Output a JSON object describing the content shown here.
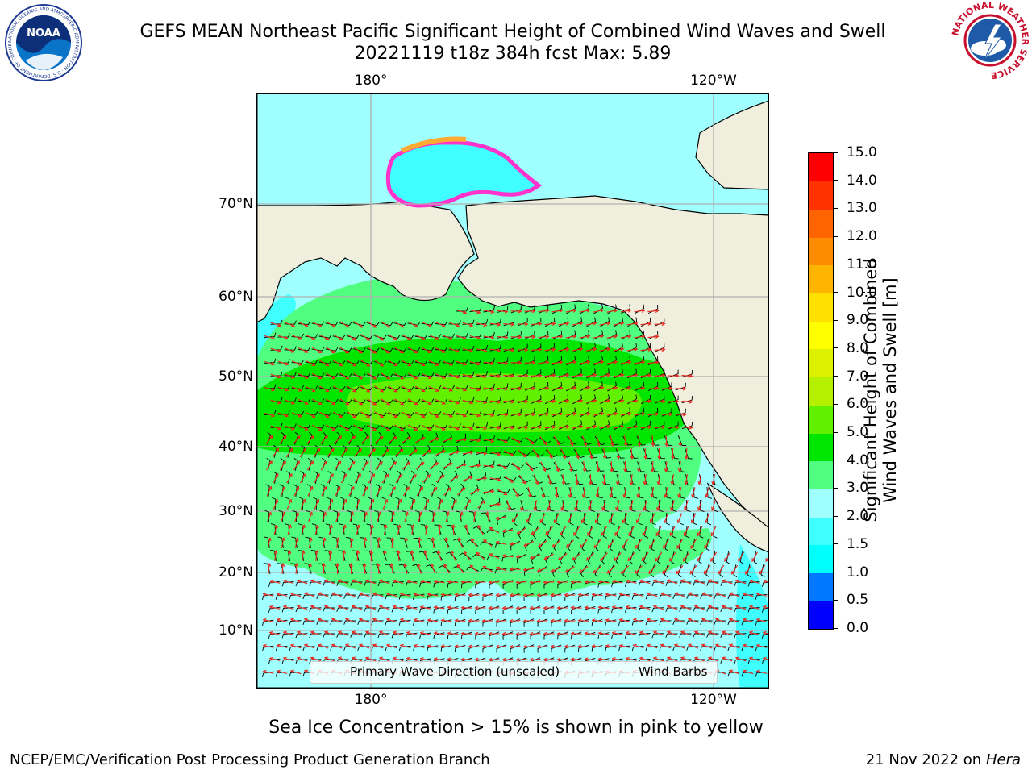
{
  "header": {
    "title_line1": "GEFS MEAN Northeast Pacific Significant Height of Combined Wind Waves and Swell",
    "title_line2": "20221119 t18z 384h fcst   Max: 5.89"
  },
  "logos": {
    "noaa_text": "NOAA",
    "noaa_ring_text": "NATIONAL OCEANIC AND ATMOSPHERIC ADMINISTRATION · U.S. DEPARTMENT OF COMMERCE",
    "nws_ring_text": "NATIONAL WEATHER SERVICE"
  },
  "map": {
    "lon_labels_top": [
      "180°",
      "120°W"
    ],
    "lon_labels_bottom": [
      "180°",
      "120°W"
    ],
    "lat_labels": [
      "70°N",
      "60°N",
      "50°N",
      "40°N",
      "30°N",
      "20°N",
      "10°N"
    ],
    "colors": {
      "land": "#f0eedc",
      "land_edge": "#000000",
      "grid": "#b0b0b0",
      "wave_direction": "#e8281e",
      "wind_barb": "#000000"
    }
  },
  "legend": {
    "wave_label": "Primary Wave Direction (unscaled)",
    "barb_label": "Wind Barbs"
  },
  "colorbar": {
    "title_line1": "Significant Height of Combined",
    "title_line2": "Wind Waves and Swell [m]",
    "levels": [
      "0.0",
      "0.5",
      "1.0",
      "1.5",
      "2.0",
      "3.0",
      "4.0",
      "5.0",
      "6.0",
      "7.0",
      "8.0",
      "9.0",
      "10.0",
      "11.0",
      "12.0",
      "13.0",
      "14.0",
      "15.0"
    ],
    "colors": [
      "#0000ff",
      "#0078ff",
      "#00ffff",
      "#40ffff",
      "#a0ffff",
      "#50ff80",
      "#00e600",
      "#60f000",
      "#b4f000",
      "#dcf000",
      "#ffff00",
      "#ffe000",
      "#ffb400",
      "#ff8c00",
      "#ff6400",
      "#ff3200",
      "#ff0000"
    ]
  },
  "caption": "Sea Ice Concentration > 15% is shown in pink to yellow",
  "footer": {
    "left": "NCEP/EMC/Verification Post Processing Product Generation Branch",
    "date": "21 Nov 2022 on",
    "machine": "Hera"
  }
}
